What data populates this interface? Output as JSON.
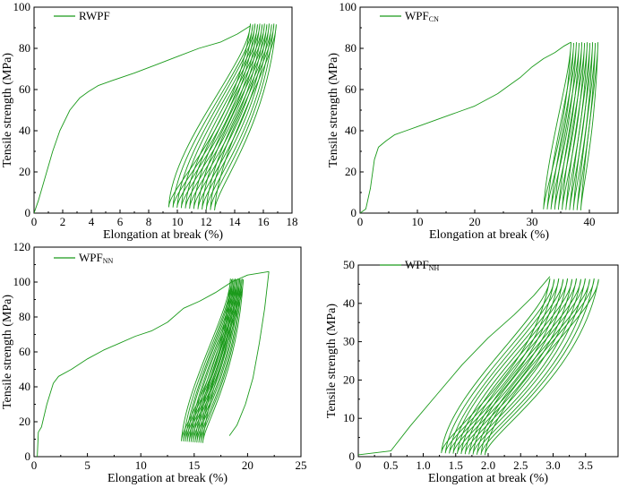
{
  "style": {
    "line_color": "#1a9a1a",
    "axis_color": "#000000",
    "background": "#ffffff"
  },
  "chart_data": [
    {
      "type": "line",
      "legend": {
        "base": "RWPF",
        "sub": "",
        "placement": "top-left"
      },
      "xlabel": "Elongation at break (%)",
      "ylabel": "Tensile strength (MPa)",
      "xlim": [
        0,
        18
      ],
      "ylim": [
        0,
        100
      ],
      "xticks": [
        0,
        2,
        4,
        6,
        8,
        10,
        12,
        14,
        16,
        18
      ],
      "xtick_labels": [
        "0",
        "2",
        "4",
        "6",
        "8",
        "10",
        "12",
        "14",
        "16",
        "18"
      ],
      "yticks": [
        0,
        20,
        40,
        60,
        80,
        100
      ],
      "ytick_labels": [
        "0",
        "20",
        "40",
        "60",
        "80",
        "100"
      ],
      "initial": [
        [
          0,
          0
        ],
        [
          0.3,
          6
        ],
        [
          0.8,
          18
        ],
        [
          1.3,
          30
        ],
        [
          1.8,
          40
        ],
        [
          2.5,
          50
        ],
        [
          3.2,
          56
        ],
        [
          3.8,
          59
        ],
        [
          4.5,
          62
        ],
        [
          5.5,
          64.5
        ],
        [
          7,
          68
        ],
        [
          8.5,
          72
        ],
        [
          10,
          76
        ],
        [
          11.5,
          80
        ],
        [
          13,
          83
        ],
        [
          14.2,
          87
        ],
        [
          15.1,
          91
        ]
      ],
      "cycles": {
        "count": 12,
        "peak_y": 92,
        "peak_x_start": 15.1,
        "peak_x_end": 16.9,
        "bottom_x_start": 9.4,
        "bottom_x_end": 12.6,
        "bottom_y_start": 3,
        "bottom_y_end": 1.5,
        "bulge": 0.35
      }
    },
    {
      "type": "line",
      "legend": {
        "base": "WPF",
        "sub": "CN",
        "placement": "top-left"
      },
      "xlabel": "Elongation at break (%)",
      "ylabel": "Tensile strength (MPa)",
      "xlim": [
        0,
        45
      ],
      "ylim": [
        0,
        100
      ],
      "xticks": [
        0,
        10,
        20,
        30,
        40
      ],
      "xtick_labels": [
        "0",
        "10",
        "20",
        "30",
        "40"
      ],
      "yticks": [
        0,
        20,
        40,
        60,
        80,
        100
      ],
      "ytick_labels": [
        "0",
        "20",
        "40",
        "60",
        "80",
        "100"
      ],
      "initial": [
        [
          0,
          0
        ],
        [
          1,
          2
        ],
        [
          1.8,
          12
        ],
        [
          2.5,
          26
        ],
        [
          3.2,
          32
        ],
        [
          4.5,
          35
        ],
        [
          6,
          38
        ],
        [
          8,
          40
        ],
        [
          10,
          42
        ],
        [
          12,
          44
        ],
        [
          14,
          46
        ],
        [
          16,
          48
        ],
        [
          18,
          50
        ],
        [
          20,
          52
        ],
        [
          22,
          55
        ],
        [
          24,
          58
        ],
        [
          26,
          62
        ],
        [
          28,
          66
        ],
        [
          30,
          71
        ],
        [
          32,
          75
        ],
        [
          34,
          78
        ],
        [
          35.5,
          81
        ],
        [
          36.8,
          83
        ]
      ],
      "cycles": {
        "count": 11,
        "peak_y": 83,
        "peak_x_start": 36.8,
        "peak_x_end": 41.5,
        "bottom_x_start": 32.0,
        "bottom_x_end": 38.5,
        "bottom_y_start": 2,
        "bottom_y_end": 1.5,
        "bulge": 0.9
      }
    },
    {
      "type": "line",
      "legend": {
        "base": "WPF",
        "sub": "NN",
        "placement": "top-left"
      },
      "xlabel": "Elongation at break (%)",
      "ylabel": "Tensile strength (MPa)",
      "xlim": [
        0,
        25
      ],
      "ylim": [
        0,
        120
      ],
      "xticks": [
        0,
        5,
        10,
        15,
        20,
        25
      ],
      "xtick_labels": [
        "0",
        "5",
        "10",
        "15",
        "20",
        "25"
      ],
      "yticks": [
        0,
        20,
        40,
        60,
        80,
        100,
        120
      ],
      "ytick_labels": [
        "0",
        "20",
        "40",
        "60",
        "80",
        "100",
        "120"
      ],
      "initial": [
        [
          0.3,
          0
        ],
        [
          0.4,
          14
        ],
        [
          0.7,
          17
        ],
        [
          1.2,
          30
        ],
        [
          1.8,
          42
        ],
        [
          2.3,
          46
        ],
        [
          3.5,
          50
        ],
        [
          5,
          56
        ],
        [
          6.5,
          61
        ],
        [
          8,
          65
        ],
        [
          9.5,
          69
        ],
        [
          11,
          72
        ],
        [
          12.5,
          77
        ],
        [
          14,
          85
        ],
        [
          15.5,
          89
        ],
        [
          17,
          94
        ],
        [
          18.5,
          100
        ],
        [
          20,
          104
        ],
        [
          22,
          106
        ]
      ],
      "closing": [
        [
          22,
          106
        ],
        [
          21.6,
          85
        ],
        [
          21.1,
          65
        ],
        [
          20.5,
          45
        ],
        [
          19.8,
          30
        ],
        [
          19.0,
          18
        ],
        [
          18.3,
          12
        ]
      ],
      "cycles": {
        "count": 12,
        "peak_y": 102,
        "peak_x_start": 18.4,
        "peak_x_end": 19.6,
        "bottom_x_start": 13.8,
        "bottom_x_end": 15.8,
        "bottom_y_start": 9,
        "bottom_y_end": 8,
        "bulge": 0.6
      }
    },
    {
      "type": "line",
      "legend": {
        "base": "WPF",
        "sub": "NH",
        "placement": "top-left"
      },
      "xlabel": "Elongation at break (%)",
      "ylabel": "Tensile strength (MPa)",
      "xlim": [
        0,
        4.0
      ],
      "ylim": [
        0,
        50
      ],
      "xticks": [
        0,
        0.5,
        1.0,
        1.5,
        2.0,
        2.5,
        3.0,
        3.5
      ],
      "xtick_labels": [
        "0",
        "0.5",
        "1.0",
        "1.5",
        "2.0",
        "2.5",
        "3.0",
        "3.5"
      ],
      "yticks": [
        0,
        10,
        20,
        30,
        40,
        50
      ],
      "ytick_labels": [
        "0",
        "10",
        "20",
        "30",
        "40",
        "50"
      ],
      "initial": [
        [
          0,
          0.5
        ],
        [
          0.5,
          1.5
        ],
        [
          0.8,
          8
        ],
        [
          1.2,
          16
        ],
        [
          1.6,
          24
        ],
        [
          2.0,
          31
        ],
        [
          2.4,
          37
        ],
        [
          2.7,
          42
        ],
        [
          2.95,
          47
        ]
      ],
      "cycles": {
        "count": 12,
        "peak_y": 46.5,
        "peak_x_start": 2.95,
        "peak_x_end": 3.7,
        "bottom_x_start": 1.28,
        "bottom_x_end": 1.95,
        "bottom_y_start": 1,
        "bottom_y_end": 0.5,
        "bulge": 0.13
      }
    }
  ]
}
